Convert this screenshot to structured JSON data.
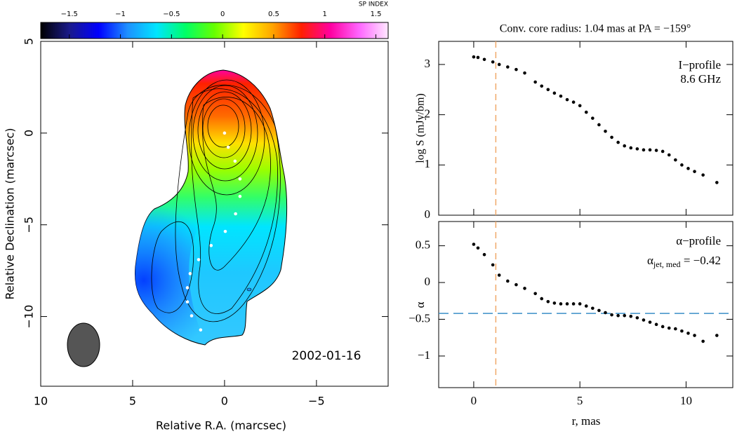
{
  "chart_data": [
    {
      "type": "image",
      "xlabel": "Relative R.A. (marcsec)",
      "ylabel": "Relative Declination (marcsec)",
      "xlim": [
        10,
        -8.9
      ],
      "ylim": [
        -13.8,
        5
      ],
      "xticks": [
        10,
        5,
        0,
        {
          "value": -5,
          "label": "−5"
        }
      ],
      "yticks": [
        5,
        0,
        {
          "value": -5,
          "label": "−5"
        },
        {
          "value": -10,
          "label": "−10"
        }
      ],
      "annotation": "2002-01-16",
      "colorbar": {
        "label": "SP INDEX",
        "lim": [
          -1.78,
          1.62
        ],
        "ticks": [
          {
            "value": -1.5,
            "label": "−1.5"
          },
          {
            "value": -1,
            "label": "−1"
          },
          {
            "value": -0.5,
            "label": "−0.5"
          },
          0,
          0.5,
          1,
          1.5
        ],
        "colors": [
          "#000000",
          "#1a1a8c",
          "#0000ff",
          "#1e90ff",
          "#00e5ff",
          "#00ff66",
          "#66ff00",
          "#ffff00",
          "#ffa500",
          "#ff2000",
          "#ff00a0",
          "#ff66ff",
          "#ffe8ff"
        ]
      },
      "series": [
        {
          "color": "#ffffff",
          "x": [
            0,
            -0.2,
            -0.57,
            -0.84,
            -0.84,
            -0.6,
            -0.04,
            0.73,
            1.41,
            1.87,
            2.02,
            2.02,
            1.79,
            1.3
          ],
          "y": [
            0,
            -0.77,
            -1.53,
            -2.5,
            -3.45,
            -4.4,
            -5.36,
            -6.13,
            -6.9,
            -7.66,
            -8.43,
            -9.2,
            -9.96,
            -10.73
          ]
        }
      ]
    },
    {
      "type": "scatter",
      "title": "Conv. core radius: 1.04 mas at PA = −159°",
      "ylabel": "log S (mJy/bm)",
      "annotations": [
        "I−profile",
        "8.6 GHz"
      ],
      "xlim": [
        -1.65,
        12.2
      ],
      "ylim": [
        0,
        3.46
      ],
      "yticks": [
        0,
        1,
        2,
        3
      ],
      "vline": {
        "value": 1.04,
        "color": "#f0a868"
      },
      "color": "#000000",
      "x": [
        0,
        0.2,
        0.5,
        0.9,
        1.2,
        1.6,
        2.0,
        2.4,
        2.9,
        3.2,
        3.5,
        3.8,
        4.1,
        4.4,
        4.7,
        5.0,
        5.3,
        5.6,
        5.9,
        6.2,
        6.5,
        6.8,
        7.1,
        7.4,
        7.7,
        8.0,
        8.3,
        8.6,
        8.9,
        9.2,
        9.5,
        9.8,
        10.1,
        10.4,
        10.8,
        11.45
      ],
      "values": [
        3.15,
        3.14,
        3.1,
        3.05,
        3.0,
        2.95,
        2.9,
        2.83,
        2.65,
        2.57,
        2.5,
        2.43,
        2.37,
        2.3,
        2.25,
        2.18,
        2.05,
        1.93,
        1.8,
        1.67,
        1.55,
        1.45,
        1.38,
        1.34,
        1.32,
        1.3,
        1.3,
        1.29,
        1.27,
        1.2,
        1.1,
        1.0,
        0.93,
        0.87,
        0.8,
        0.65
      ]
    },
    {
      "type": "scatter",
      "xlabel": "r, mas",
      "ylabel": "α",
      "annotations": [
        "α−profile"
      ],
      "median_label": {
        "symbol": "α",
        "subscript": "jet, med",
        "text": " = −0.42"
      },
      "xlim": [
        -1.65,
        12.2
      ],
      "ylim": [
        -1.43,
        0.83
      ],
      "xticks": [
        0,
        5,
        10
      ],
      "yticks": [
        0.5,
        0,
        {
          "value": -0.5,
          "label": "−0.5"
        },
        {
          "value": -1,
          "label": "−1"
        }
      ],
      "vline": {
        "value": 1.04,
        "color": "#f0a868"
      },
      "hline": {
        "value": -0.42,
        "color": "#3a8fc8"
      },
      "color": "#000000",
      "x": [
        0,
        0.2,
        0.5,
        0.9,
        1.2,
        1.6,
        2.0,
        2.4,
        2.9,
        3.2,
        3.5,
        3.8,
        4.1,
        4.4,
        4.7,
        5.0,
        5.3,
        5.6,
        5.9,
        6.2,
        6.5,
        6.8,
        7.1,
        7.4,
        7.7,
        8.0,
        8.3,
        8.6,
        8.9,
        9.2,
        9.5,
        9.8,
        10.1,
        10.4,
        10.8,
        11.45
      ],
      "values": [
        0.52,
        0.47,
        0.38,
        0.24,
        0.1,
        0.02,
        -0.03,
        -0.08,
        -0.15,
        -0.22,
        -0.26,
        -0.28,
        -0.29,
        -0.29,
        -0.29,
        -0.29,
        -0.32,
        -0.35,
        -0.38,
        -0.41,
        -0.44,
        -0.45,
        -0.45,
        -0.46,
        -0.48,
        -0.51,
        -0.54,
        -0.57,
        -0.6,
        -0.62,
        -0.63,
        -0.66,
        -0.69,
        -0.72,
        -0.8,
        -0.72
      ]
    }
  ]
}
